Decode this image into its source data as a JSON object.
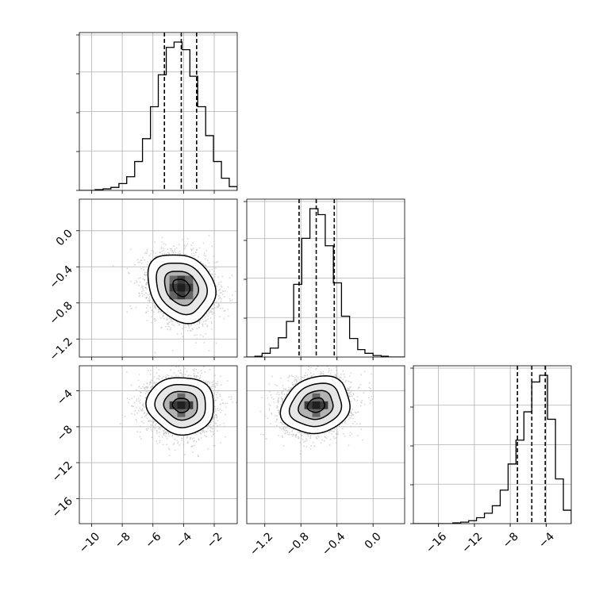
{
  "chart_data": {
    "type": "corner",
    "grid": true,
    "parameters": [
      {
        "index": 0,
        "range": [
          -10.8,
          -0.5
        ],
        "ticks": [
          -10,
          -8,
          -6,
          -4,
          -2
        ],
        "tick_labels": [
          "−10",
          "−8",
          "−6",
          "−4",
          "−2"
        ],
        "quantiles": [
          -5.25,
          -4.15,
          -3.15
        ],
        "mean": -4.15,
        "sd": 1.1
      },
      {
        "index": 1,
        "range": [
          -1.4,
          0.35
        ],
        "ticks": [
          -1.2,
          -0.8,
          -0.4,
          0.0
        ],
        "tick_labels": [
          "−1.2",
          "−0.8",
          "−0.4",
          "0.0"
        ],
        "quantiles": [
          -0.82,
          -0.63,
          -0.43
        ],
        "mean": -0.63,
        "sd": 0.19
      },
      {
        "index": 2,
        "range": [
          -18.8,
          -1.2
        ],
        "ticks": [
          -16,
          -12,
          -8,
          -4
        ],
        "tick_labels": [
          "−16",
          "−12",
          "−8",
          "−4"
        ],
        "quantiles": [
          -7.2,
          -5.6,
          -4.1
        ],
        "mean": -5.6,
        "sd": 1.6
      }
    ],
    "histograms": [
      {
        "param": 0,
        "bin_edges": [
          -10.8,
          -10.28,
          -9.77,
          -9.25,
          -8.74,
          -8.22,
          -7.71,
          -7.19,
          -6.68,
          -6.16,
          -5.65,
          -5.13,
          -4.62,
          -4.1,
          -3.59,
          -3.08,
          -2.56,
          -2.05,
          -1.53,
          -1.02,
          -0.5
        ],
        "counts": [
          0,
          0,
          1,
          2,
          4,
          9,
          18,
          38,
          68,
          110,
          152,
          188,
          195,
          185,
          150,
          110,
          72,
          38,
          16,
          5
        ]
      },
      {
        "param": 1,
        "bin_edges": [
          -1.4,
          -1.31,
          -1.23,
          -1.14,
          -1.05,
          -0.96,
          -0.88,
          -0.79,
          -0.7,
          -0.61,
          -0.53,
          -0.44,
          -0.35,
          -0.26,
          -0.17,
          -0.09,
          0.0,
          0.09,
          0.17,
          0.26,
          0.35
        ],
        "counts": [
          0,
          1,
          5,
          12,
          26,
          48,
          98,
          160,
          200,
          192,
          150,
          100,
          55,
          25,
          10,
          5,
          2,
          1,
          0,
          0
        ]
      },
      {
        "param": 2,
        "bin_edges": [
          -18.8,
          -17.92,
          -17.04,
          -16.16,
          -15.28,
          -14.4,
          -13.52,
          -12.64,
          -11.76,
          -10.88,
          -10.0,
          -9.12,
          -8.24,
          -7.36,
          -6.48,
          -5.6,
          -4.72,
          -3.84,
          -2.96,
          -2.08,
          -1.2
        ],
        "counts": [
          0,
          0,
          0,
          0,
          0,
          1,
          2,
          4,
          8,
          14,
          24,
          45,
          80,
          112,
          150,
          190,
          199,
          140,
          60,
          18
        ]
      }
    ],
    "pairs": [
      {
        "x_param": 0,
        "y_param": 1,
        "correlation": -0.2
      },
      {
        "x_param": 0,
        "y_param": 2,
        "correlation": -0.05
      },
      {
        "x_param": 1,
        "y_param": 2,
        "correlation": 0.15
      }
    ],
    "contour_levels_sigma": [
      0.5,
      1.0,
      1.5,
      2.0
    ]
  }
}
